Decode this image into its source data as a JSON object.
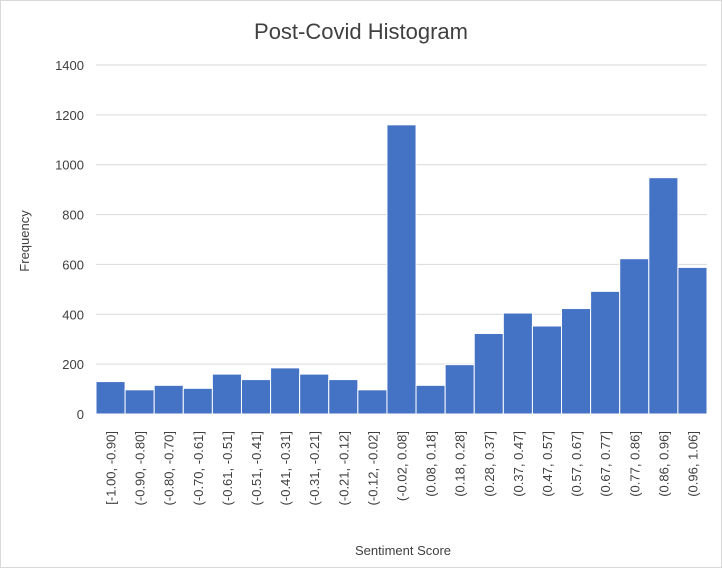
{
  "chart_data": {
    "type": "bar",
    "title": "Post-Covid Histogram",
    "xlabel": "Sentiment Score",
    "ylabel": "Frequency",
    "ylim": [
      0,
      1400
    ],
    "yticks": [
      "0",
      "200",
      "400",
      "600",
      "800",
      "1000",
      "1200",
      "1400"
    ],
    "grid": true,
    "legend": "none",
    "bar_color": "#4472C4",
    "categories": [
      "[-1.00, -0.90]",
      "(-0.90, -0.80]",
      "(-0.80, -0.70]",
      "(-0.70, -0.61]",
      "(-0.61, -0.51]",
      "(-0.51, -0.41]",
      "(-0.41, -0.31]",
      "(-0.31, -0.21]",
      "(-0.21, -0.12]",
      "(-0.12, -0.02]",
      "(-0.02, 0.08]",
      "(0.08, 0.18]",
      "(0.18, 0.28]",
      "(0.28, 0.37]",
      "(0.37, 0.47]",
      "(0.47, 0.57]",
      "(0.57, 0.67]",
      "(0.67, 0.77]",
      "(0.77, 0.86]",
      "(0.86, 0.96]",
      "(0.96, 1.06]"
    ],
    "values": [
      130,
      97,
      115,
      103,
      160,
      138,
      185,
      160,
      138,
      97,
      1160,
      115,
      198,
      323,
      405,
      353,
      423,
      492,
      623,
      948,
      588
    ]
  }
}
